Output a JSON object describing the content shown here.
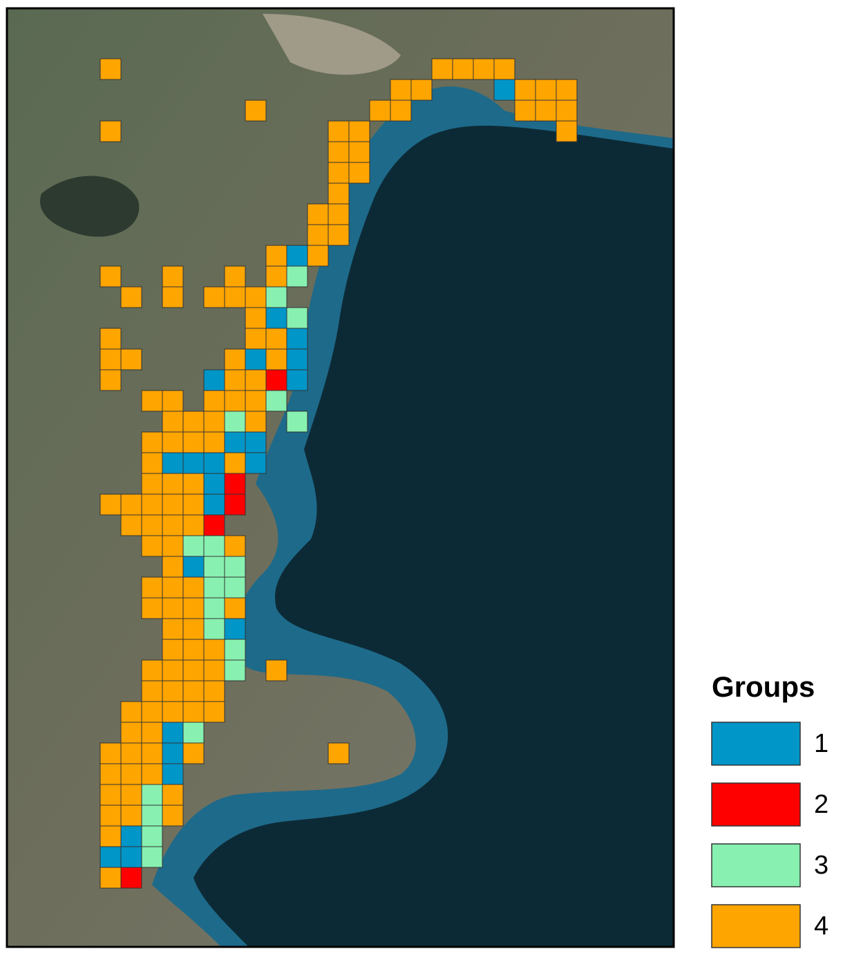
{
  "legend": {
    "title": "Groups",
    "items": [
      {
        "label": "1",
        "color": "#0096c8"
      },
      {
        "label": "2",
        "color": "#ff0000"
      },
      {
        "label": "3",
        "color": "#88f0b0"
      },
      {
        "label": "4",
        "color": "#ffa500"
      }
    ]
  }
}
